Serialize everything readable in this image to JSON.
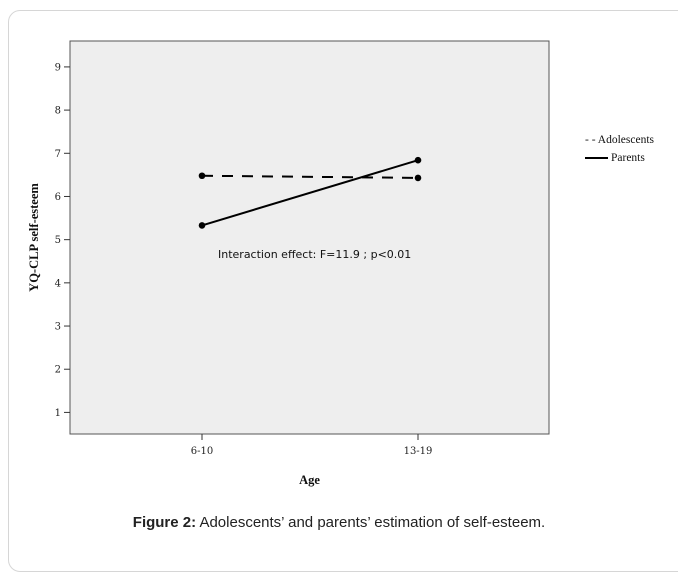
{
  "caption": {
    "label": "Figure 2:",
    "text": " Adolescents’ and parents’ estimation of   self-esteem."
  },
  "chart_data": {
    "type": "line",
    "title": "",
    "xlabel": "Age",
    "ylabel": "YQ-CLP self-esteem",
    "categories": [
      "6-10",
      "13-19"
    ],
    "ylim": [
      0.5,
      9.6
    ],
    "yticks": [
      1,
      2,
      3,
      4,
      5,
      6,
      7,
      8,
      9
    ],
    "grid": false,
    "legend_position": "right",
    "series": [
      {
        "name": "Adolescents",
        "legend_label": "- - Adolescents",
        "values": [
          6.48,
          6.43
        ],
        "line_style": "dashed",
        "color": "#000000"
      },
      {
        "name": "Parents",
        "legend_label": "Parents",
        "values": [
          5.33,
          6.84
        ],
        "line_style": "solid",
        "color": "#000000"
      }
    ],
    "annotation": "Interaction effect: F=11.9 ; p<0.01",
    "plot_background": "#eeeeee"
  }
}
